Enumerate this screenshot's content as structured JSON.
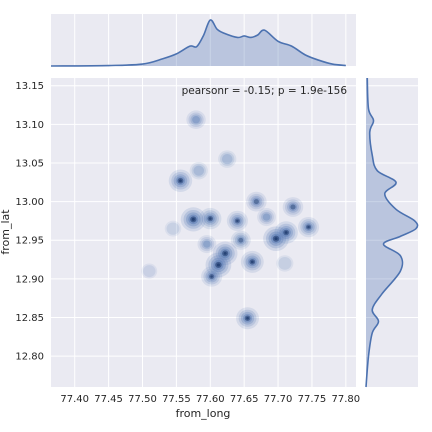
{
  "chart_data": {
    "type": "kde-jointplot",
    "annotation": "pearsonr = -0.15; p = 1.9e-156",
    "xlabel": "from_long",
    "ylabel": "from_lat",
    "xlim": [
      77.365,
      77.815
    ],
    "ylim": [
      12.76,
      13.16
    ],
    "x_ticks": [
      77.4,
      77.45,
      77.5,
      77.55,
      77.6,
      77.65,
      77.7,
      77.75,
      77.8
    ],
    "x_tick_labels": [
      "77.40",
      "77.45",
      "77.50",
      "77.55",
      "77.60",
      "77.65",
      "77.70",
      "77.75",
      "77.80"
    ],
    "y_ticks": [
      12.8,
      12.85,
      12.9,
      12.95,
      13.0,
      13.05,
      13.1,
      13.15
    ],
    "y_tick_labels": [
      "12.80",
      "12.85",
      "12.90",
      "12.95",
      "13.00",
      "13.05",
      "13.10",
      "13.15"
    ],
    "grid": true,
    "color": "#4c72b0",
    "background": "#eaeaf2",
    "density_clusters": [
      {
        "long": 77.556,
        "lat": 13.027,
        "weight": 0.8
      },
      {
        "long": 77.575,
        "lat": 12.977,
        "weight": 0.95
      },
      {
        "long": 77.6,
        "lat": 12.978,
        "weight": 0.7
      },
      {
        "long": 77.612,
        "lat": 12.918,
        "weight": 1.0
      },
      {
        "long": 77.622,
        "lat": 12.933,
        "weight": 0.9
      },
      {
        "long": 77.602,
        "lat": 12.903,
        "weight": 0.6
      },
      {
        "long": 77.64,
        "lat": 12.975,
        "weight": 0.6
      },
      {
        "long": 77.645,
        "lat": 12.95,
        "weight": 0.5
      },
      {
        "long": 77.662,
        "lat": 12.922,
        "weight": 0.75
      },
      {
        "long": 77.668,
        "lat": 13.0,
        "weight": 0.55
      },
      {
        "long": 77.697,
        "lat": 12.952,
        "weight": 1.0
      },
      {
        "long": 77.712,
        "lat": 12.96,
        "weight": 0.8
      },
      {
        "long": 77.722,
        "lat": 12.993,
        "weight": 0.55
      },
      {
        "long": 77.745,
        "lat": 12.967,
        "weight": 0.6
      },
      {
        "long": 77.655,
        "lat": 12.849,
        "weight": 0.75
      },
      {
        "long": 77.579,
        "lat": 13.106,
        "weight": 0.45
      },
      {
        "long": 77.625,
        "lat": 13.055,
        "weight": 0.35
      },
      {
        "long": 77.583,
        "lat": 13.04,
        "weight": 0.35
      },
      {
        "long": 77.683,
        "lat": 12.98,
        "weight": 0.4
      },
      {
        "long": 77.595,
        "lat": 12.945,
        "weight": 0.4
      },
      {
        "long": 77.51,
        "lat": 12.91,
        "weight": 0.15
      },
      {
        "long": 77.545,
        "lat": 12.965,
        "weight": 0.2
      },
      {
        "long": 77.71,
        "lat": 12.92,
        "weight": 0.25
      }
    ],
    "x_marginal": {
      "x": [
        77.36,
        77.45,
        77.5,
        77.53,
        77.55,
        77.57,
        77.58,
        77.59,
        77.6,
        77.61,
        77.62,
        77.64,
        77.65,
        77.66,
        77.67,
        77.68,
        77.7,
        77.72,
        77.74,
        77.76,
        77.78,
        77.8
      ],
      "density": [
        0.0,
        0.01,
        0.04,
        0.15,
        0.25,
        0.41,
        0.4,
        0.63,
        0.95,
        0.76,
        0.68,
        0.59,
        0.62,
        0.59,
        0.64,
        0.74,
        0.51,
        0.41,
        0.23,
        0.12,
        0.04,
        0.01
      ]
    },
    "y_marginal": {
      "y": [
        12.76,
        12.8,
        12.83,
        12.845,
        12.86,
        12.88,
        12.91,
        12.93,
        12.945,
        12.955,
        12.965,
        12.975,
        12.99,
        13.01,
        13.025,
        13.04,
        13.06,
        13.09,
        13.105,
        13.12,
        13.16
      ],
      "density": [
        0.0,
        0.04,
        0.1,
        0.2,
        0.1,
        0.25,
        0.55,
        0.55,
        0.28,
        0.55,
        0.8,
        0.78,
        0.48,
        0.3,
        0.48,
        0.18,
        0.1,
        0.06,
        0.12,
        0.04,
        0.02
      ]
    }
  }
}
